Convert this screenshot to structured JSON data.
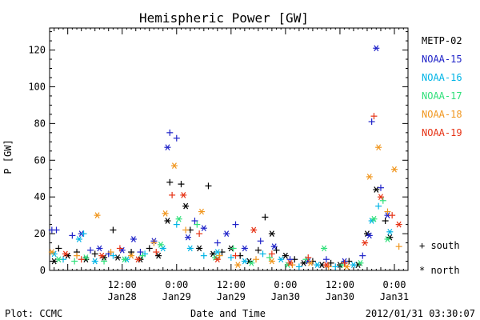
{
  "chart_data": {
    "type": "scatter",
    "title": "Hemispheric Power [GW]",
    "ylabel": "P [GW]",
    "xlabel": "Date and Time",
    "ylim": [
      0,
      132
    ],
    "yticks": [
      0,
      20,
      40,
      60,
      80,
      100,
      120
    ],
    "xlim": [
      "2012-01-27T20:00",
      "2012-01-31T03:00"
    ],
    "xticks": [
      {
        "time": "2012-01-28T12:00",
        "label1": "12:00",
        "label2": "Jan28"
      },
      {
        "time": "2012-01-29T00:00",
        "label1": "0:00",
        "label2": "Jan29"
      },
      {
        "time": "2012-01-29T12:00",
        "label1": "12:00",
        "label2": "Jan29"
      },
      {
        "time": "2012-01-30T00:00",
        "label1": "0:00",
        "label2": "Jan30"
      },
      {
        "time": "2012-01-30T12:00",
        "label1": "12:00",
        "label2": "Jan30"
      },
      {
        "time": "2012-01-31T00:00",
        "label1": "0:00",
        "label2": "Jan31"
      }
    ],
    "legend_placement": "right",
    "marker_legend": [
      {
        "symbol": "+",
        "label": "south"
      },
      {
        "symbol": "*",
        "label": "north"
      }
    ],
    "footer_left": "Plot: CCMC",
    "footer_right": "2012/01/31 03:30:07",
    "series": [
      {
        "name": "METP-02",
        "color": "#000000",
        "points": [
          {
            "t": "2012-01-27T21:00",
            "v": 5,
            "m": "*"
          },
          {
            "t": "2012-01-27T22:00",
            "v": 12,
            "m": "+"
          },
          {
            "t": "2012-01-28T00:00",
            "v": 8,
            "m": "*"
          },
          {
            "t": "2012-01-28T02:00",
            "v": 10,
            "m": "+"
          },
          {
            "t": "2012-01-28T04:00",
            "v": 6,
            "m": "*"
          },
          {
            "t": "2012-01-28T06:00",
            "v": 9,
            "m": "+"
          },
          {
            "t": "2012-01-28T08:00",
            "v": 7,
            "m": "*"
          },
          {
            "t": "2012-01-28T10:00",
            "v": 22,
            "m": "+"
          },
          {
            "t": "2012-01-28T11:00",
            "v": 7,
            "m": "*"
          },
          {
            "t": "2012-01-28T14:00",
            "v": 10,
            "m": "+"
          },
          {
            "t": "2012-01-28T16:00",
            "v": 6,
            "m": "*"
          },
          {
            "t": "2012-01-28T18:00",
            "v": 12,
            "m": "+"
          },
          {
            "t": "2012-01-28T20:00",
            "v": 8,
            "m": "*"
          },
          {
            "t": "2012-01-28T22:00",
            "v": 27,
            "m": "*"
          },
          {
            "t": "2012-01-28T22:30",
            "v": 48,
            "m": "+"
          },
          {
            "t": "2012-01-29T01:00",
            "v": 47,
            "m": "+"
          },
          {
            "t": "2012-01-29T02:00",
            "v": 35,
            "m": "*"
          },
          {
            "t": "2012-01-29T03:00",
            "v": 22,
            "m": "+"
          },
          {
            "t": "2012-01-29T05:00",
            "v": 12,
            "m": "*"
          },
          {
            "t": "2012-01-29T07:00",
            "v": 46,
            "m": "+"
          },
          {
            "t": "2012-01-29T08:00",
            "v": 9,
            "m": "*"
          },
          {
            "t": "2012-01-29T10:00",
            "v": 10,
            "m": "+"
          },
          {
            "t": "2012-01-29T12:00",
            "v": 12,
            "m": "*"
          },
          {
            "t": "2012-01-29T14:00",
            "v": 8,
            "m": "+"
          },
          {
            "t": "2012-01-29T16:00",
            "v": 5,
            "m": "*"
          },
          {
            "t": "2012-01-29T18:00",
            "v": 11,
            "m": "+"
          },
          {
            "t": "2012-01-29T19:30",
            "v": 29,
            "m": "+"
          },
          {
            "t": "2012-01-29T21:00",
            "v": 20,
            "m": "*"
          },
          {
            "t": "2012-01-29T22:00",
            "v": 11,
            "m": "+"
          },
          {
            "t": "2012-01-30T00:00",
            "v": 8,
            "m": "*"
          },
          {
            "t": "2012-01-30T02:00",
            "v": 6,
            "m": "+"
          },
          {
            "t": "2012-01-30T04:00",
            "v": 4,
            "m": "*"
          },
          {
            "t": "2012-01-30T06:00",
            "v": 5,
            "m": "+"
          },
          {
            "t": "2012-01-30T08:00",
            "v": 3,
            "m": "*"
          },
          {
            "t": "2012-01-30T10:00",
            "v": 4,
            "m": "+"
          },
          {
            "t": "2012-01-30T12:00",
            "v": 3,
            "m": "*"
          },
          {
            "t": "2012-01-30T14:00",
            "v": 5,
            "m": "+"
          },
          {
            "t": "2012-01-30T16:00",
            "v": 3,
            "m": "*"
          },
          {
            "t": "2012-01-30T18:00",
            "v": 20,
            "m": "*"
          },
          {
            "t": "2012-01-30T20:00",
            "v": 44,
            "m": "*"
          },
          {
            "t": "2012-01-30T22:00",
            "v": 27,
            "m": "+"
          },
          {
            "t": "2012-01-30T23:00",
            "v": 18,
            "m": "*"
          }
        ]
      },
      {
        "name": "NOAA-15",
        "color": "#1e22c8",
        "points": [
          {
            "t": "2012-01-27T20:30",
            "v": 22,
            "m": "+"
          },
          {
            "t": "2012-01-27T21:30",
            "v": 22,
            "m": "+"
          },
          {
            "t": "2012-01-28T01:00",
            "v": 19,
            "m": "+"
          },
          {
            "t": "2012-01-28T03:00",
            "v": 20,
            "m": "*"
          },
          {
            "t": "2012-01-28T05:00",
            "v": 11,
            "m": "+"
          },
          {
            "t": "2012-01-28T07:00",
            "v": 12,
            "m": "*"
          },
          {
            "t": "2012-01-28T09:00",
            "v": 9,
            "m": "+"
          },
          {
            "t": "2012-01-28T12:00",
            "v": 11,
            "m": "*"
          },
          {
            "t": "2012-01-28T14:30",
            "v": 17,
            "m": "*"
          },
          {
            "t": "2012-01-28T16:00",
            "v": 10,
            "m": "+"
          },
          {
            "t": "2012-01-28T19:00",
            "v": 16,
            "m": "*"
          },
          {
            "t": "2012-01-28T22:00",
            "v": 67,
            "m": "*"
          },
          {
            "t": "2012-01-28T22:30",
            "v": 75,
            "m": "+"
          },
          {
            "t": "2012-01-29T00:00",
            "v": 72,
            "m": "+"
          },
          {
            "t": "2012-01-29T02:30",
            "v": 18,
            "m": "*"
          },
          {
            "t": "2012-01-29T04:00",
            "v": 27,
            "m": "+"
          },
          {
            "t": "2012-01-29T06:00",
            "v": 23,
            "m": "*"
          },
          {
            "t": "2012-01-29T09:00",
            "v": 15,
            "m": "+"
          },
          {
            "t": "2012-01-29T11:00",
            "v": 20,
            "m": "*"
          },
          {
            "t": "2012-01-29T13:00",
            "v": 25,
            "m": "+"
          },
          {
            "t": "2012-01-29T15:00",
            "v": 12,
            "m": "*"
          },
          {
            "t": "2012-01-29T18:30",
            "v": 16,
            "m": "+"
          },
          {
            "t": "2012-01-29T21:30",
            "v": 13,
            "m": "*"
          },
          {
            "t": "2012-01-30T01:00",
            "v": 6,
            "m": "+"
          },
          {
            "t": "2012-01-30T05:00",
            "v": 5,
            "m": "*"
          },
          {
            "t": "2012-01-30T09:00",
            "v": 6,
            "m": "+"
          },
          {
            "t": "2012-01-30T13:00",
            "v": 5,
            "m": "*"
          },
          {
            "t": "2012-01-30T17:00",
            "v": 8,
            "m": "+"
          },
          {
            "t": "2012-01-30T18:30",
            "v": 19,
            "m": "*"
          },
          {
            "t": "2012-01-30T19:00",
            "v": 81,
            "m": "+"
          },
          {
            "t": "2012-01-30T20:00",
            "v": 121,
            "m": "*"
          },
          {
            "t": "2012-01-30T21:00",
            "v": 45,
            "m": "+"
          },
          {
            "t": "2012-01-30T22:30",
            "v": 30,
            "m": "*"
          }
        ]
      },
      {
        "name": "NOAA-16",
        "color": "#00b4e6",
        "points": [
          {
            "t": "2012-01-27T21:00",
            "v": 9,
            "m": "*"
          },
          {
            "t": "2012-01-27T23:00",
            "v": 6,
            "m": "+"
          },
          {
            "t": "2012-01-28T02:30",
            "v": 17,
            "m": "*"
          },
          {
            "t": "2012-01-28T03:30",
            "v": 20,
            "m": "+"
          },
          {
            "t": "2012-01-28T06:00",
            "v": 5,
            "m": "*"
          },
          {
            "t": "2012-01-28T10:00",
            "v": 8,
            "m": "+"
          },
          {
            "t": "2012-01-28T13:00",
            "v": 6,
            "m": "*"
          },
          {
            "t": "2012-01-28T17:00",
            "v": 9,
            "m": "+"
          },
          {
            "t": "2012-01-28T21:00",
            "v": 12,
            "m": "*"
          },
          {
            "t": "2012-01-29T00:00",
            "v": 25,
            "m": "+"
          },
          {
            "t": "2012-01-29T03:00",
            "v": 12,
            "m": "*"
          },
          {
            "t": "2012-01-29T06:00",
            "v": 8,
            "m": "+"
          },
          {
            "t": "2012-01-29T09:00",
            "v": 10,
            "m": "*"
          },
          {
            "t": "2012-01-29T12:00",
            "v": 7,
            "m": "+"
          },
          {
            "t": "2012-01-29T15:00",
            "v": 5,
            "m": "*"
          },
          {
            "t": "2012-01-29T19:00",
            "v": 9,
            "m": "+"
          },
          {
            "t": "2012-01-29T23:00",
            "v": 6,
            "m": "*"
          },
          {
            "t": "2012-01-30T03:00",
            "v": 2,
            "m": "+"
          },
          {
            "t": "2012-01-30T07:00",
            "v": 3,
            "m": "*"
          },
          {
            "t": "2012-01-30T11:00",
            "v": 2,
            "m": "+"
          },
          {
            "t": "2012-01-30T15:00",
            "v": 3,
            "m": "*"
          },
          {
            "t": "2012-01-30T19:00",
            "v": 27,
            "m": "*"
          },
          {
            "t": "2012-01-30T20:30",
            "v": 35,
            "m": "+"
          },
          {
            "t": "2012-01-30T23:00",
            "v": 21,
            "m": "*"
          }
        ]
      },
      {
        "name": "NOAA-17",
        "color": "#30e07a",
        "points": [
          {
            "t": "2012-01-27T22:00",
            "v": 6,
            "m": "*"
          },
          {
            "t": "2012-01-28T01:30",
            "v": 5,
            "m": "+"
          },
          {
            "t": "2012-01-28T04:00",
            "v": 7,
            "m": "*"
          },
          {
            "t": "2012-01-28T08:00",
            "v": 5,
            "m": "+"
          },
          {
            "t": "2012-01-28T12:30",
            "v": 6,
            "m": "*"
          },
          {
            "t": "2012-01-28T16:30",
            "v": 8,
            "m": "+"
          },
          {
            "t": "2012-01-28T20:30",
            "v": 14,
            "m": "*"
          },
          {
            "t": "2012-01-29T00:30",
            "v": 28,
            "m": "*"
          },
          {
            "t": "2012-01-29T04:30",
            "v": 25,
            "m": "+"
          },
          {
            "t": "2012-01-29T08:30",
            "v": 7,
            "m": "*"
          },
          {
            "t": "2012-01-29T12:30",
            "v": 12,
            "m": "+"
          },
          {
            "t": "2012-01-29T16:30",
            "v": 4,
            "m": "*"
          },
          {
            "t": "2012-01-29T20:30",
            "v": 7,
            "m": "+"
          },
          {
            "t": "2012-01-30T00:30",
            "v": 3,
            "m": "*"
          },
          {
            "t": "2012-01-30T04:30",
            "v": 6,
            "m": "+"
          },
          {
            "t": "2012-01-30T08:30",
            "v": 12,
            "m": "*"
          },
          {
            "t": "2012-01-30T12:30",
            "v": 3,
            "m": "+"
          },
          {
            "t": "2012-01-30T16:30",
            "v": 4,
            "m": "*"
          },
          {
            "t": "2012-01-30T19:30",
            "v": 28,
            "m": "*"
          },
          {
            "t": "2012-01-30T21:30",
            "v": 38,
            "m": "+"
          },
          {
            "t": "2012-01-30T22:30",
            "v": 17,
            "m": "*"
          }
        ]
      },
      {
        "name": "NOAA-18",
        "color": "#f0961e",
        "points": [
          {
            "t": "2012-01-27T20:30",
            "v": 10,
            "m": "*"
          },
          {
            "t": "2012-01-28T02:00",
            "v": 8,
            "m": "+"
          },
          {
            "t": "2012-01-28T06:30",
            "v": 30,
            "m": "*"
          },
          {
            "t": "2012-01-28T09:30",
            "v": 10,
            "m": "+"
          },
          {
            "t": "2012-01-28T14:00",
            "v": 8,
            "m": "*"
          },
          {
            "t": "2012-01-28T19:00",
            "v": 15,
            "m": "+"
          },
          {
            "t": "2012-01-28T21:30",
            "v": 31,
            "m": "*"
          },
          {
            "t": "2012-01-28T23:30",
            "v": 57,
            "m": "*"
          },
          {
            "t": "2012-01-29T02:00",
            "v": 22,
            "m": "+"
          },
          {
            "t": "2012-01-29T05:30",
            "v": 32,
            "m": "*"
          },
          {
            "t": "2012-01-29T09:30",
            "v": 8,
            "m": "+"
          },
          {
            "t": "2012-01-29T13:30",
            "v": 3,
            "m": "*"
          },
          {
            "t": "2012-01-29T17:30",
            "v": 6,
            "m": "+"
          },
          {
            "t": "2012-01-29T21:00",
            "v": 5,
            "m": "*"
          },
          {
            "t": "2012-01-30T01:30",
            "v": 3,
            "m": "+"
          },
          {
            "t": "2012-01-30T05:30",
            "v": 4,
            "m": "*"
          },
          {
            "t": "2012-01-30T09:30",
            "v": 2,
            "m": "+"
          },
          {
            "t": "2012-01-30T13:30",
            "v": 2,
            "m": "*"
          },
          {
            "t": "2012-01-30T18:30",
            "v": 51,
            "m": "*"
          },
          {
            "t": "2012-01-30T20:30",
            "v": 67,
            "m": "*"
          },
          {
            "t": "2012-01-30T22:30",
            "v": 32,
            "m": "+"
          },
          {
            "t": "2012-01-31T00:00",
            "v": 55,
            "m": "*"
          },
          {
            "t": "2012-01-31T01:00",
            "v": 13,
            "m": "+"
          }
        ]
      },
      {
        "name": "NOAA-19",
        "color": "#e63214",
        "points": [
          {
            "t": "2012-01-27T23:30",
            "v": 9,
            "m": "*"
          },
          {
            "t": "2012-01-28T03:00",
            "v": 6,
            "m": "+"
          },
          {
            "t": "2012-01-28T07:30",
            "v": 8,
            "m": "*"
          },
          {
            "t": "2012-01-28T11:30",
            "v": 12,
            "m": "+"
          },
          {
            "t": "2012-01-28T15:30",
            "v": 6,
            "m": "*"
          },
          {
            "t": "2012-01-28T19:30",
            "v": 10,
            "m": "+"
          },
          {
            "t": "2012-01-28T23:00",
            "v": 41,
            "m": "+"
          },
          {
            "t": "2012-01-29T01:30",
            "v": 41,
            "m": "*"
          },
          {
            "t": "2012-01-29T05:00",
            "v": 20,
            "m": "+"
          },
          {
            "t": "2012-01-29T09:00",
            "v": 6,
            "m": "*"
          },
          {
            "t": "2012-01-29T13:00",
            "v": 8,
            "m": "+"
          },
          {
            "t": "2012-01-29T17:00",
            "v": 22,
            "m": "*"
          },
          {
            "t": "2012-01-29T21:00",
            "v": 9,
            "m": "+"
          },
          {
            "t": "2012-01-30T01:00",
            "v": 4,
            "m": "*"
          },
          {
            "t": "2012-01-30T05:00",
            "v": 7,
            "m": "+"
          },
          {
            "t": "2012-01-30T09:00",
            "v": 3,
            "m": "*"
          },
          {
            "t": "2012-01-30T13:00",
            "v": 4,
            "m": "+"
          },
          {
            "t": "2012-01-30T17:30",
            "v": 15,
            "m": "*"
          },
          {
            "t": "2012-01-30T19:30",
            "v": 84,
            "m": "+"
          },
          {
            "t": "2012-01-30T21:00",
            "v": 40,
            "m": "*"
          },
          {
            "t": "2012-01-30T23:30",
            "v": 30,
            "m": "+"
          },
          {
            "t": "2012-01-31T01:00",
            "v": 25,
            "m": "*"
          }
        ]
      }
    ]
  }
}
